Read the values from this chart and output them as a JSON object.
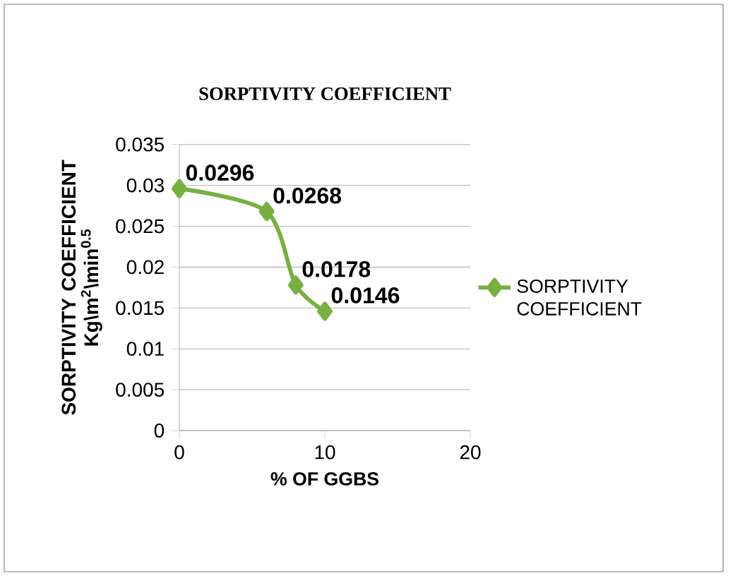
{
  "chart_data": {
    "type": "line",
    "title": "SORPTIVITY COEFFICIENT",
    "xlabel": "% OF GGBS",
    "ylabel": "SORPTIVITY COEFFICIENT Kg\\m$^{2}$\\min$^{0.5}$",
    "x": [
      0,
      6,
      8,
      10
    ],
    "series": [
      {
        "name": "SORPTIVITY COEFFICIENT",
        "color": "#77b041",
        "values": [
          0.0296,
          0.0268,
          0.0178,
          0.0146
        ]
      }
    ],
    "xlim": [
      0,
      20
    ],
    "xticks": [
      0,
      10,
      20
    ],
    "ylim": [
      0,
      0.035
    ],
    "yticks": [
      0,
      0.005,
      0.01,
      0.015,
      0.02,
      0.025,
      0.03,
      0.035
    ],
    "grid": "y",
    "legend": "right",
    "marker": "diamond",
    "line_style": "solid",
    "data_labels": true
  }
}
